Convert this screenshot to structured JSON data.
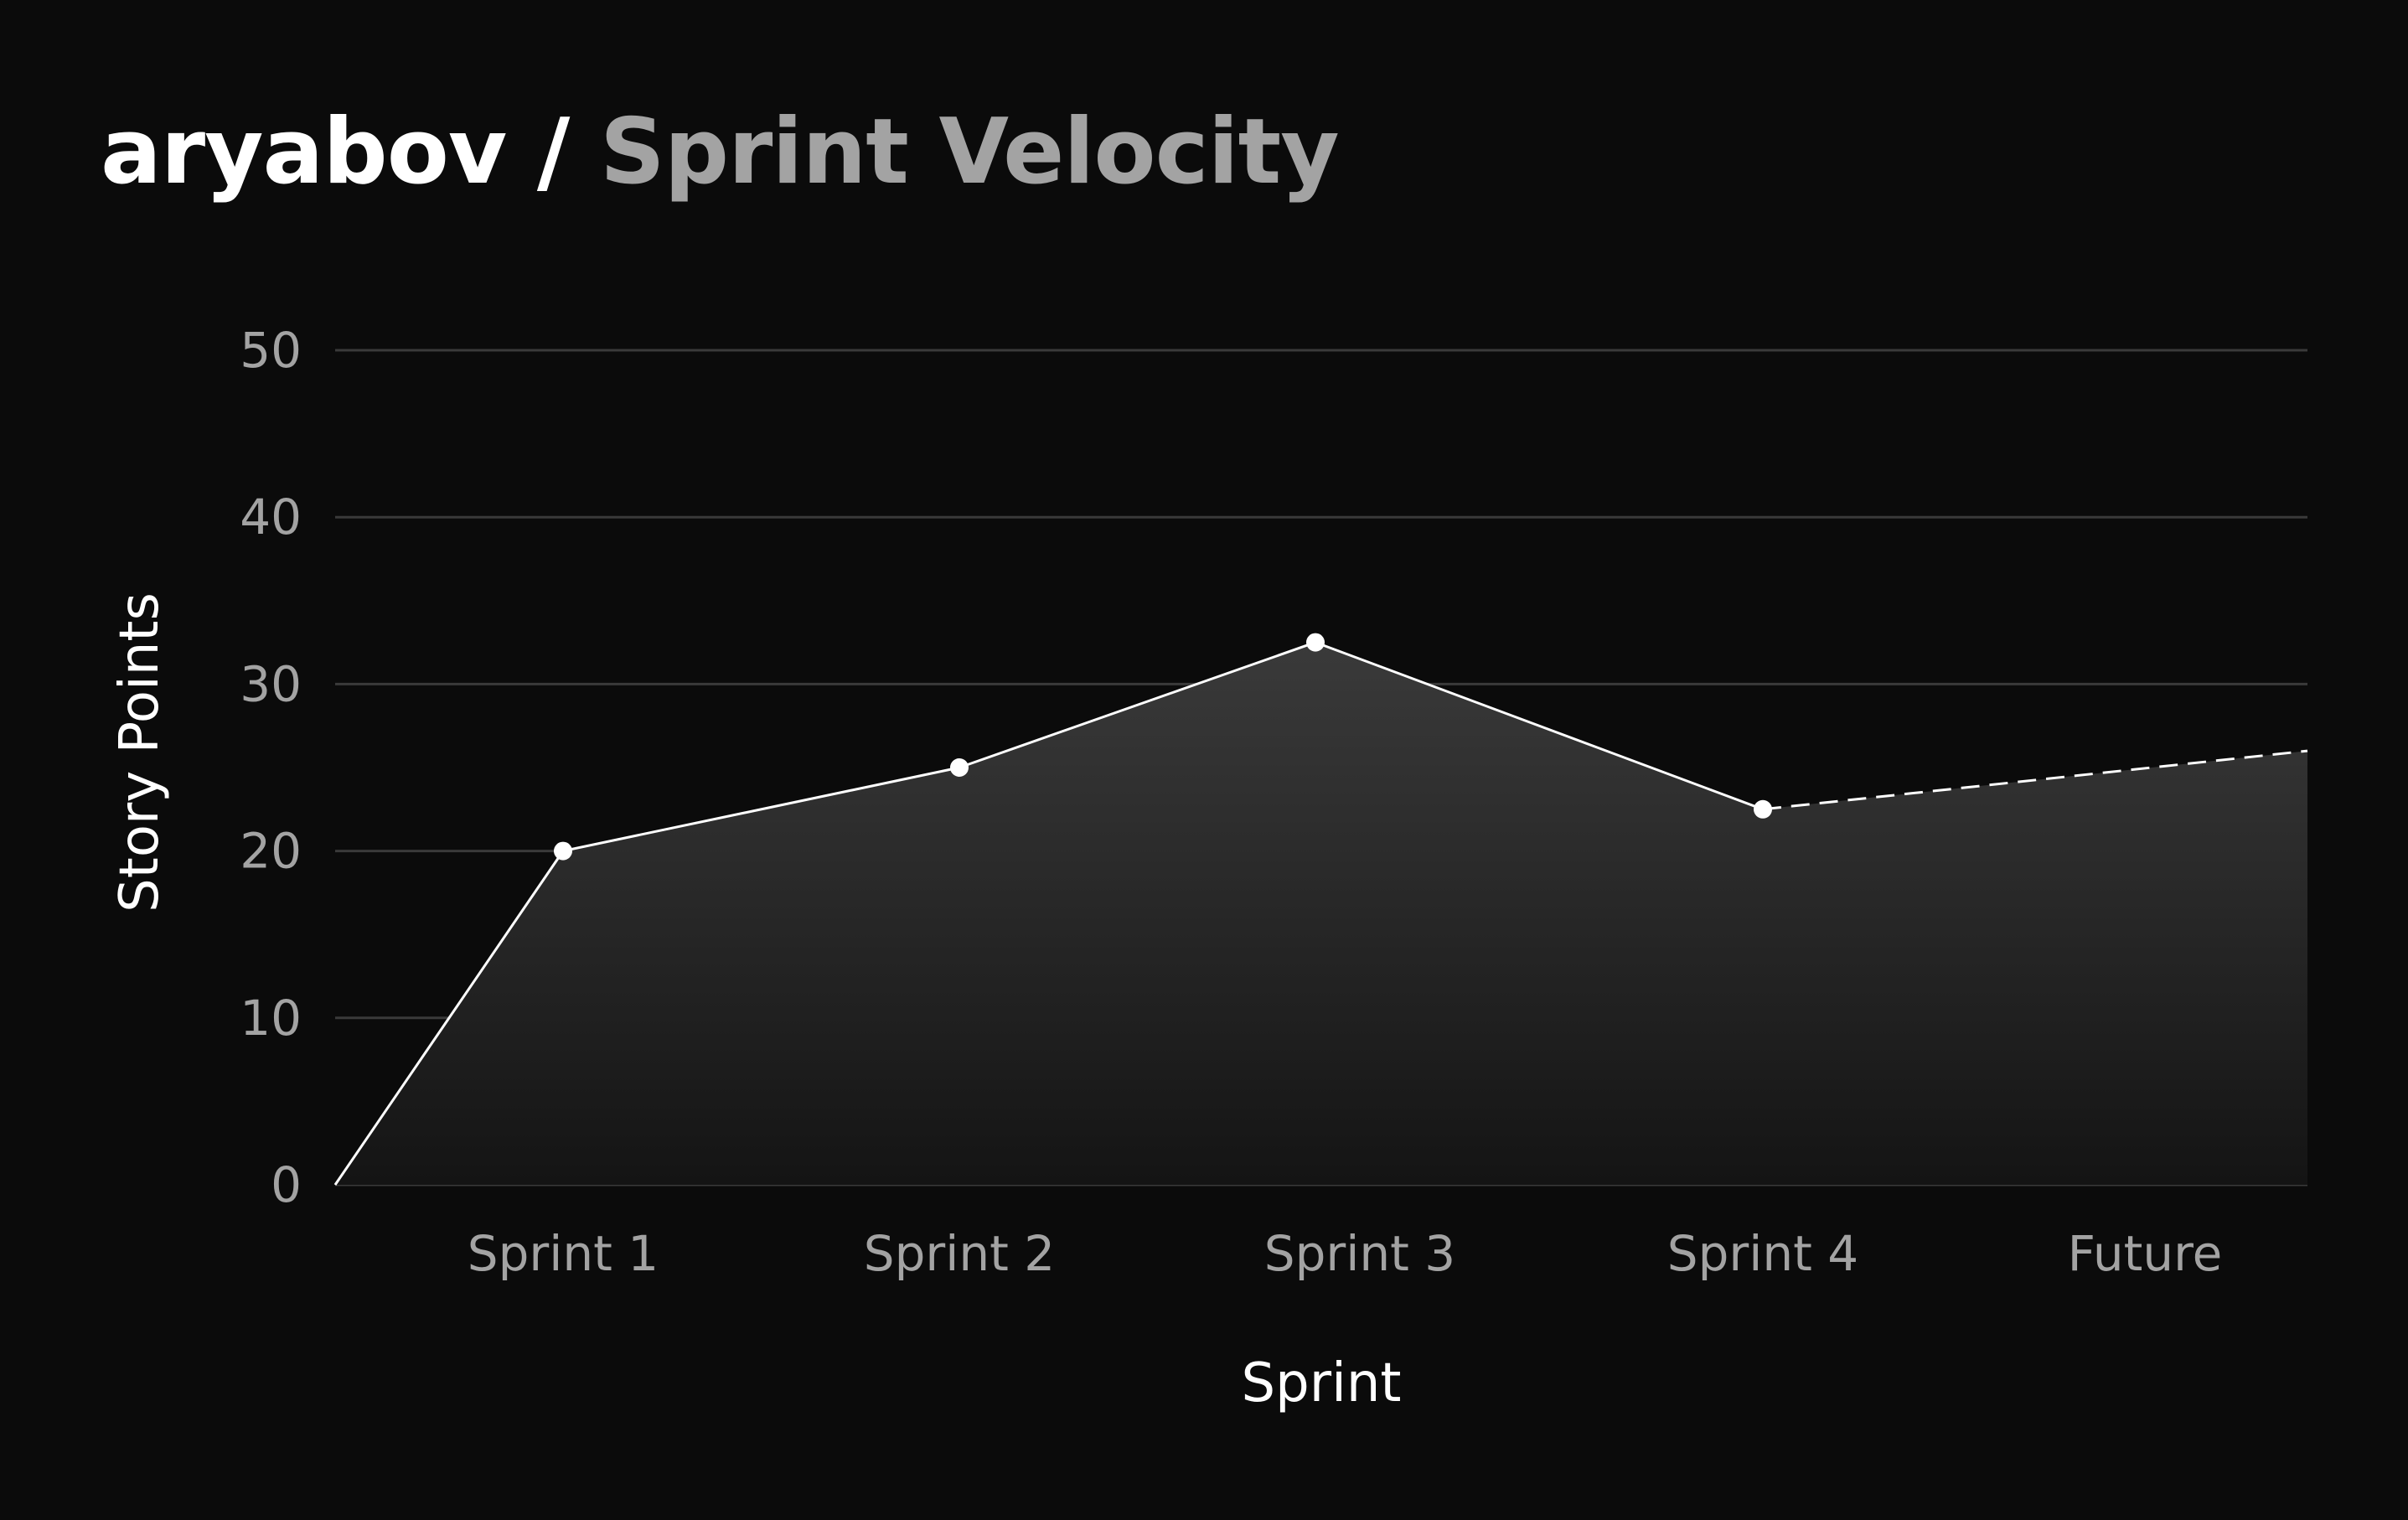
{
  "header": {
    "owner": "aryabov",
    "separator": " / ",
    "title": "Sprint Velocity"
  },
  "colors": {
    "background": "#0b0b0b",
    "line": "#ffffff",
    "grid": "#3a3a3a",
    "tick_text": "#a3a3a3",
    "area_top": "#3a3a3a",
    "area_bottom": "#141414"
  },
  "chart_data": {
    "type": "area",
    "xlabel": "Sprint",
    "ylabel": "Story Points",
    "categories": [
      "Sprint 1",
      "Sprint 2",
      "Sprint 3",
      "Sprint 4",
      "Future"
    ],
    "yticks": [
      "0",
      "10",
      "20",
      "30",
      "40",
      "50"
    ],
    "ylim": [
      0,
      50
    ],
    "grid": true,
    "series": [
      {
        "values": [
          20,
          25,
          32.5,
          22.5,
          26
        ],
        "style": "solid line with filled area; segment from Sprint 4 to Future dashed (projection)"
      }
    ],
    "line_starts_at_origin": true
  }
}
